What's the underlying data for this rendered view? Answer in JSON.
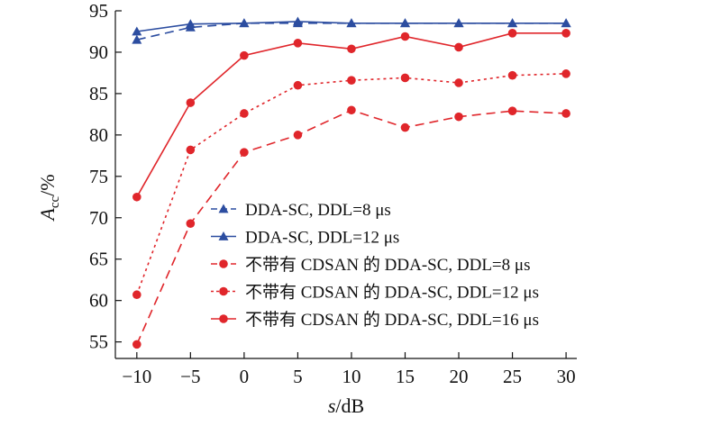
{
  "chart_data": {
    "type": "line",
    "x": [
      -10,
      -5,
      0,
      5,
      10,
      15,
      20,
      25,
      30
    ],
    "xlim": [
      -12,
      31
    ],
    "ylim": [
      53,
      95
    ],
    "xticks": [
      -10,
      -5,
      0,
      5,
      10,
      15,
      20,
      25,
      30
    ],
    "yticks": [
      55,
      60,
      65,
      70,
      75,
      80,
      85,
      90,
      95
    ],
    "xtick_labels": [
      "−10",
      "−5",
      "0",
      "5",
      "10",
      "15",
      "20",
      "25",
      "30"
    ],
    "ytick_labels": [
      "55",
      "60",
      "65",
      "70",
      "75",
      "80",
      "85",
      "90",
      "95"
    ],
    "xlabel": {
      "italic": "s",
      "rest": "/dB"
    },
    "ylabel": {
      "italic": "A",
      "sub": "cc",
      "rest": "/%"
    },
    "grid": false,
    "legend_position": "lower-right",
    "series": [
      {
        "name": "DDA-SC, DDL=8 μs",
        "color": "#2c4da0",
        "marker": "triangle",
        "dash": "dashed",
        "values": [
          91.5,
          93.0,
          93.5,
          93.5,
          93.5,
          93.5,
          93.5,
          93.5,
          93.5
        ]
      },
      {
        "name": "DDA-SC, DDL=12 μs",
        "color": "#2c4da0",
        "marker": "triangle",
        "dash": "solid",
        "values": [
          92.5,
          93.4,
          93.5,
          93.7,
          93.5,
          93.5,
          93.5,
          93.5,
          93.5
        ]
      },
      {
        "name": "不带有 CDSAN 的 DDA-SC, DDL=8 μs",
        "color": "#e0262b",
        "marker": "circle",
        "dash": "dashed",
        "values": [
          54.7,
          69.3,
          77.9,
          80.0,
          83.0,
          80.9,
          82.2,
          82.9,
          82.6
        ]
      },
      {
        "name": "不带有 CDSAN 的 DDA-SC, DDL=12 μs",
        "color": "#e0262b",
        "marker": "circle",
        "dash": "dotted",
        "values": [
          60.7,
          78.2,
          82.6,
          86.0,
          86.6,
          86.9,
          86.3,
          87.2,
          87.4
        ]
      },
      {
        "name": "不带有 CDSAN 的 DDA-SC, DDL=16 μs",
        "color": "#e0262b",
        "marker": "circle",
        "dash": "solid",
        "values": [
          72.5,
          83.9,
          89.6,
          91.1,
          90.4,
          91.9,
          90.6,
          92.3,
          92.3
        ]
      }
    ]
  }
}
